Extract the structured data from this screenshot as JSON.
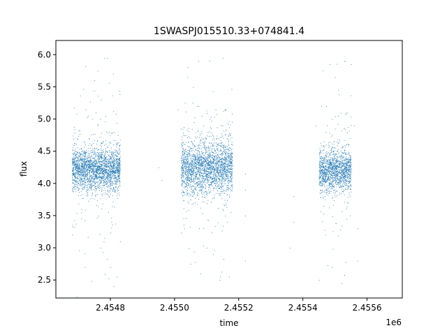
{
  "chart_data": {
    "type": "scatter",
    "title": "1SWASPJ015510.33+074841.4",
    "xlabel": "time",
    "ylabel": "flux",
    "x_offset_label": "1e6",
    "xlim": [
      2.45463,
      2.45571
    ],
    "ylim": [
      2.22,
      6.22
    ],
    "x_ticks": [
      2.4548,
      2.455,
      2.4552,
      2.4554,
      2.4556
    ],
    "x_tick_labels": [
      "2.4548",
      "2.4550",
      "2.4552",
      "2.4554",
      "2.4556"
    ],
    "y_ticks": [
      2.5,
      3.0,
      3.5,
      4.0,
      4.5,
      5.0,
      5.5,
      6.0
    ],
    "y_tick_labels": [
      "2.5",
      "3.0",
      "3.5",
      "4.0",
      "4.5",
      "5.0",
      "5.5",
      "6.0"
    ],
    "grid": false,
    "marker_color": "#1f77b4",
    "series": [
      {
        "segments": [
          {
            "x_range": [
              2.45468,
              2.45483
            ],
            "flux_center": 4.22,
            "flux_spread": 0.16,
            "density": 2400
          },
          {
            "x_range": [
              2.45502,
              2.45518
            ],
            "flux_center": 4.25,
            "flux_spread": 0.2,
            "density": 2400
          },
          {
            "x_range": [
              2.45545,
              2.45555
            ],
            "flux_center": 4.2,
            "flux_spread": 0.16,
            "density": 1500
          }
        ],
        "points": [
          [
            2.45468,
            4.2
          ],
          [
            2.45469,
            4.1
          ],
          [
            2.4547,
            4.4
          ],
          [
            2.45471,
            3.6
          ],
          [
            2.45472,
            4.3
          ],
          [
            2.45473,
            5.05
          ],
          [
            2.45474,
            4.0
          ],
          [
            2.45475,
            5.6
          ],
          [
            2.45476,
            4.9
          ],
          [
            2.45477,
            3.0
          ],
          [
            2.45478,
            5.95
          ],
          [
            2.45479,
            4.5
          ],
          [
            2.4548,
            2.7
          ],
          [
            2.45481,
            4.8
          ],
          [
            2.45482,
            2.55
          ],
          [
            2.45483,
            3.1
          ],
          [
            2.45476,
            5.75
          ],
          [
            2.45479,
            5.95
          ],
          [
            2.45481,
            2.4
          ],
          [
            2.45477,
            5.3
          ],
          [
            2.45495,
            4.25
          ],
          [
            2.45496,
            4.05
          ],
          [
            2.45501,
            5.15
          ],
          [
            2.45502,
            4.85
          ],
          [
            2.45503,
            3.3
          ],
          [
            2.45504,
            5.65
          ],
          [
            2.45505,
            2.75
          ],
          [
            2.45506,
            4.6
          ],
          [
            2.45507,
            5.2
          ],
          [
            2.45508,
            2.6
          ],
          [
            2.45509,
            4.9
          ],
          [
            2.4551,
            3.0
          ],
          [
            2.45511,
            5.0
          ],
          [
            2.45512,
            2.9
          ],
          [
            2.45513,
            4.7
          ],
          [
            2.45514,
            2.5
          ],
          [
            2.45515,
            3.6
          ],
          [
            2.45516,
            4.3
          ],
          [
            2.45517,
            2.55
          ],
          [
            2.45518,
            4.6
          ],
          [
            2.45522,
            4.15
          ],
          [
            2.45522,
            3.9
          ],
          [
            2.45522,
            3.5
          ],
          [
            2.45522,
            2.8
          ],
          [
            2.45537,
            3.8
          ],
          [
            2.45537,
            3.4
          ],
          [
            2.45536,
            3.0
          ],
          [
            2.45544,
            4.9
          ],
          [
            2.45545,
            2.5
          ],
          [
            2.45546,
            4.4
          ],
          [
            2.45547,
            3.2
          ],
          [
            2.45548,
            4.6
          ],
          [
            2.45549,
            2.7
          ],
          [
            2.4555,
            4.85
          ],
          [
            2.4555,
            5.65
          ],
          [
            2.45551,
            5.45
          ],
          [
            2.45551,
            5.05
          ],
          [
            2.45552,
            2.45
          ],
          [
            2.45553,
            5.9
          ],
          [
            2.45554,
            3.7
          ],
          [
            2.45555,
            5.85
          ],
          [
            2.45556,
            4.9
          ],
          [
            2.45557,
            3.3
          ],
          [
            2.45557,
            2.8
          ]
        ]
      }
    ]
  }
}
